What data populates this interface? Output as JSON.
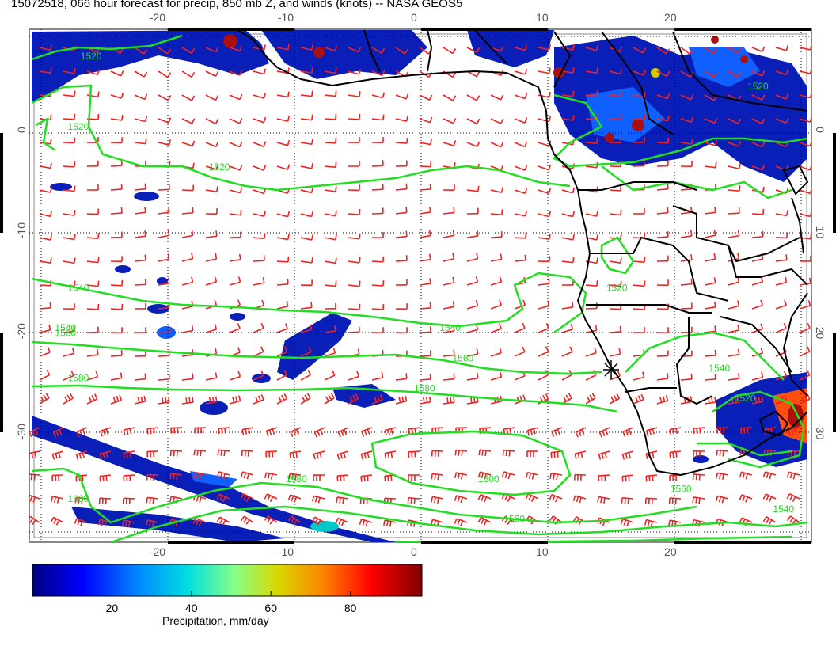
{
  "title": "15072518, 066 hour forecast for precip, 850 mb Z, and winds (knots) -- NASA GEOS5",
  "map": {
    "lon_range": [
      -30,
      31
    ],
    "lat_range": [
      -41,
      10
    ],
    "lon_ticks": [
      -20,
      -10,
      0,
      10,
      20
    ],
    "lat_ticks": [
      0,
      -10,
      -20,
      -30
    ],
    "contour_color": "#22dd22",
    "barb_color": "#ee2222",
    "land_outline_color": "#000000",
    "contour_labels": [
      {
        "text": "1520",
        "lon": -26,
        "lat": 7
      },
      {
        "text": "1520",
        "lon": -27,
        "lat": 0
      },
      {
        "text": "1520",
        "lon": -16,
        "lat": -4
      },
      {
        "text": "1520",
        "lon": 15,
        "lat": -16
      },
      {
        "text": "1520",
        "lon": 26,
        "lat": 4
      },
      {
        "text": "1520",
        "lon": 25,
        "lat": -27
      },
      {
        "text": "1540",
        "lon": -27,
        "lat": -16
      },
      {
        "text": "1540",
        "lon": -28,
        "lat": -20
      },
      {
        "text": "1540",
        "lon": 2,
        "lat": -20
      },
      {
        "text": "1540",
        "lon": 23,
        "lat": -24
      },
      {
        "text": "1540",
        "lon": 28,
        "lat": -38
      },
      {
        "text": "1560",
        "lon": -28,
        "lat": -20.5
      },
      {
        "text": "1560",
        "lon": 3,
        "lat": -23
      },
      {
        "text": "1560",
        "lon": 7,
        "lat": -39
      },
      {
        "text": "1560",
        "lon": 20,
        "lat": -36
      },
      {
        "text": "1580",
        "lon": -27,
        "lat": -25
      },
      {
        "text": "1580",
        "lon": 0,
        "lat": -26
      },
      {
        "text": "1580",
        "lon": -10,
        "lat": -35
      },
      {
        "text": "1600",
        "lon": 5,
        "lat": -35
      },
      {
        "text": "1600",
        "lon": -27,
        "lat": -37
      }
    ]
  },
  "colorbar": {
    "label": "Precipitation, mm/day",
    "ticks": [
      "20",
      "40",
      "60",
      "80"
    ],
    "tick_values": [
      20,
      40,
      60,
      80
    ],
    "min": 0,
    "max": 98,
    "colors": [
      "#000080",
      "#0000ff",
      "#0088ff",
      "#00e0e0",
      "#88ff88",
      "#d8d800",
      "#ff8000",
      "#ff0000",
      "#800000"
    ]
  }
}
